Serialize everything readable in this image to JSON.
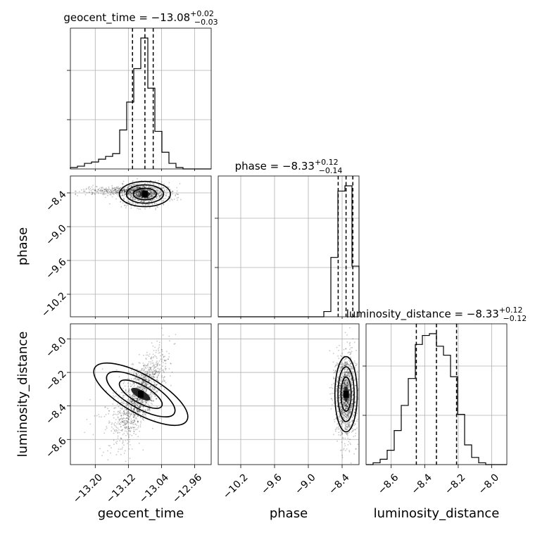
{
  "chart_data": {
    "type": "corner",
    "parameters": [
      "geocent_time",
      "phase",
      "luminosity_distance"
    ],
    "titles": [
      {
        "text": "geocent_time = −13.08",
        "plus": "+0.02",
        "minus": "−0.03"
      },
      {
        "text": "phase = −8.33",
        "plus": "+0.12",
        "minus": "−0.14"
      },
      {
        "text": "luminosity_distance = −8.33",
        "plus": "+0.12",
        "minus": "−0.12"
      }
    ],
    "xlabels": [
      "geocent_time",
      "phase",
      "luminosity_distance"
    ],
    "ylabels": [
      "",
      "phase",
      "luminosity_distance"
    ],
    "ranges": [
      [
        -13.26,
        -12.92
      ],
      [
        -10.6,
        -8.1
      ],
      [
        -8.75,
        -7.91
      ]
    ],
    "ticks": {
      "geocent_time": [
        -13.2,
        -13.12,
        -13.04,
        -12.96
      ],
      "phase": [
        -10.2,
        -9.6,
        -9.0,
        -8.4
      ],
      "luminosity_distance": [
        -8.6,
        -8.4,
        -8.2,
        -8.0
      ]
    },
    "tick_labels": {
      "geocent_time": [
        "−13.20",
        "−13.12",
        "−13.04",
        "−12.96"
      ],
      "phase": [
        "−10.2",
        "−9.6",
        "−9.0",
        "−8.4"
      ],
      "luminosity_distance": [
        "−8.6",
        "−8.4",
        "−8.2",
        "−8.0"
      ]
    },
    "quantiles": {
      "geocent_time": [
        -13.11,
        -13.08,
        -13.06
      ],
      "phase": [
        -8.47,
        -8.33,
        -8.21
      ],
      "luminosity_distance": [
        -8.45,
        -8.33,
        -8.21
      ]
    },
    "histograms": {
      "geocent_time": {
        "edges_start": -13.26,
        "bin_width": 0.017,
        "counts": [
          1,
          2,
          4,
          5,
          7,
          9,
          11,
          28,
          48,
          72,
          94,
          58,
          27,
          12,
          4,
          1,
          0,
          0,
          0,
          0
        ]
      },
      "phase": {
        "edges_start": -10.6,
        "bin_width": 0.125,
        "counts": [
          0,
          0,
          0,
          0,
          0,
          0,
          0,
          0,
          0,
          0,
          0,
          0,
          0,
          0,
          0,
          3,
          34,
          72,
          75,
          29
        ]
      },
      "luminosity_distance": {
        "edges_start": -8.75,
        "bin_width": 0.042,
        "counts": [
          0,
          1,
          3,
          8,
          19,
          33,
          48,
          67,
          72,
          73,
          66,
          61,
          49,
          28,
          11,
          4,
          1,
          0,
          0,
          0
        ]
      }
    },
    "grid": true
  }
}
